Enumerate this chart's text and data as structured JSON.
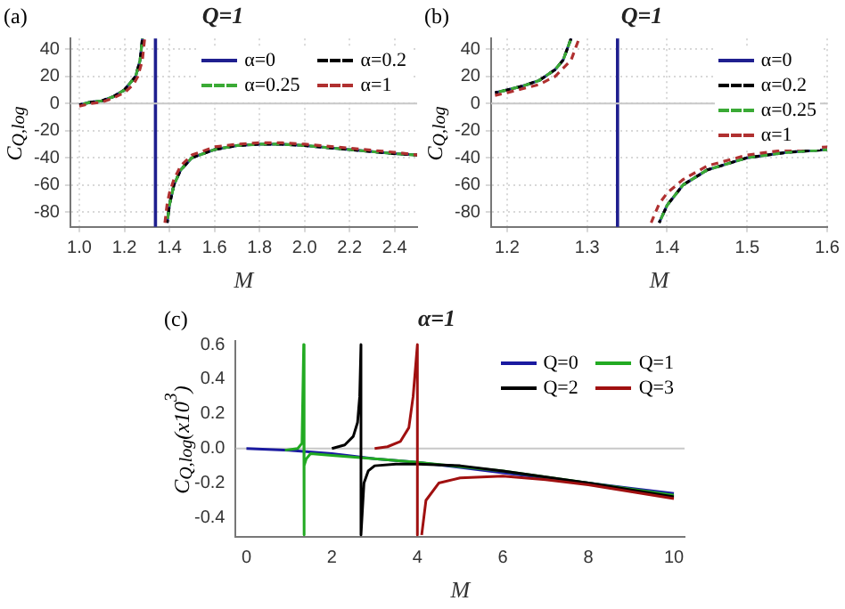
{
  "chart_data": [
    {
      "type": "line",
      "title": "Q=1",
      "xlabel": "M",
      "ylabel": "C$_{Q,log}$",
      "xlim": [
        0.96,
        2.5
      ],
      "ylim": [
        -91,
        48
      ],
      "xticks": [
        {
          "value": 1,
          "label": "1.0"
        },
        1.2,
        1.4,
        1.6,
        1.8,
        {
          "value": 2,
          "label": "2.0"
        },
        2.2,
        2.4
      ],
      "yticks": [
        -80,
        -60,
        -40,
        -20,
        0,
        20,
        40
      ],
      "grid": true,
      "legend": "top right",
      "annotations": [
        "(a)"
      ],
      "ref_lines": [
        {
          "axis": "x",
          "value": 1.338,
          "color": "#1f1f8f"
        },
        {
          "axis": "y",
          "value": 0,
          "color": "#c8c8c8"
        }
      ],
      "series": [
        {
          "name": "α=0",
          "color": "#1f1f8f",
          "line_style": "solid",
          "x": [
            1.0,
            1.05,
            1.1,
            1.15,
            1.2,
            1.25,
            1.27,
            1.28,
            1.33,
            1.39,
            1.4,
            1.42,
            1.45,
            1.5,
            1.6,
            1.7,
            1.8,
            1.9,
            2.0,
            2.2,
            2.4,
            2.5
          ],
          "values": [
            -1,
            1,
            2,
            5,
            10,
            20,
            32,
            48,
            null,
            -88,
            -75,
            -60,
            -49,
            -40,
            -34,
            -31,
            -30,
            -30,
            -31,
            -34,
            -37,
            -38
          ]
        },
        {
          "name": "α=0.2",
          "color": "#000000",
          "line_style": "dashed",
          "x": [
            1.0,
            1.05,
            1.1,
            1.15,
            1.2,
            1.25,
            1.27,
            1.28,
            1.33,
            1.39,
            1.4,
            1.42,
            1.45,
            1.5,
            1.6,
            1.7,
            1.8,
            1.9,
            2.0,
            2.2,
            2.4,
            2.5
          ],
          "values": [
            -1,
            1,
            2,
            5,
            10,
            20,
            32,
            48,
            null,
            -88,
            -75,
            -60,
            -49,
            -40,
            -34,
            -31,
            -30,
            -30,
            -31,
            -34,
            -37,
            -38
          ]
        },
        {
          "name": "α=0.25",
          "color": "#3aaa35",
          "line_style": "dashed",
          "x": [
            1.0,
            1.05,
            1.1,
            1.15,
            1.2,
            1.25,
            1.27,
            1.28,
            1.33,
            1.39,
            1.4,
            1.42,
            1.45,
            1.5,
            1.6,
            1.7,
            1.8,
            1.9,
            2.0,
            2.2,
            2.4,
            2.5
          ],
          "values": [
            -1,
            1,
            2,
            5,
            10,
            20,
            32,
            48,
            null,
            -88,
            -75,
            -60,
            -49,
            -40,
            -34,
            -31,
            -30,
            -30,
            -31,
            -34,
            -37,
            -38
          ]
        },
        {
          "name": "α=1",
          "color": "#b03030",
          "line_style": "dashed",
          "x": [
            1.0,
            1.05,
            1.1,
            1.15,
            1.2,
            1.24,
            1.26,
            1.28,
            1.29,
            1.33,
            1.38,
            1.39,
            1.4,
            1.42,
            1.45,
            1.5,
            1.6,
            1.7,
            1.8,
            1.9,
            2.0,
            2.2,
            2.4,
            2.5
          ],
          "values": [
            -2,
            0,
            1,
            4,
            8,
            14,
            20,
            32,
            48,
            null,
            -88,
            -74,
            -66,
            -56,
            -46,
            -38,
            -32,
            -30,
            -29,
            -29,
            -30,
            -33,
            -36,
            -38
          ]
        }
      ]
    },
    {
      "type": "line",
      "title": "Q=1",
      "xlabel": "M",
      "ylabel": "C$_{Q,log}$",
      "xlim": [
        1.18,
        1.6
      ],
      "ylim": [
        -91,
        48
      ],
      "xticks": [
        1.2,
        1.3,
        1.4,
        1.5,
        1.6
      ],
      "yticks": [
        -80,
        -60,
        -40,
        -20,
        0,
        20,
        40
      ],
      "grid": true,
      "legend": "top right",
      "annotations": [
        "(b)"
      ],
      "ref_lines": [
        {
          "axis": "x",
          "value": 1.338,
          "color": "#1f1f8f"
        },
        {
          "axis": "y",
          "value": 0,
          "color": "#c8c8c8"
        }
      ],
      "series": [
        {
          "name": "α=0",
          "color": "#1f1f8f",
          "line_style": "solid",
          "x": [
            1.185,
            1.2,
            1.22,
            1.24,
            1.26,
            1.27,
            1.28,
            1.33,
            1.39,
            1.4,
            1.42,
            1.45,
            1.5,
            1.55,
            1.6
          ],
          "values": [
            8,
            10,
            13,
            17,
            25,
            32,
            48,
            null,
            -88,
            -75,
            -60,
            -49,
            -40,
            -36,
            -34
          ]
        },
        {
          "name": "α=0.2",
          "color": "#000000",
          "line_style": "dashed",
          "x": [
            1.185,
            1.2,
            1.22,
            1.24,
            1.26,
            1.27,
            1.28,
            1.33,
            1.39,
            1.4,
            1.42,
            1.45,
            1.5,
            1.55,
            1.6
          ],
          "values": [
            8,
            10,
            13,
            17,
            25,
            32,
            48,
            null,
            -88,
            -75,
            -60,
            -49,
            -40,
            -36,
            -34
          ]
        },
        {
          "name": "α=0.25",
          "color": "#3aaa35",
          "line_style": "dashed",
          "x": [
            1.185,
            1.2,
            1.22,
            1.24,
            1.26,
            1.27,
            1.28,
            1.33,
            1.39,
            1.4,
            1.42,
            1.45,
            1.5,
            1.55,
            1.6
          ],
          "values": [
            8,
            10,
            13,
            17,
            25,
            32,
            48,
            null,
            -88,
            -75,
            -60,
            -49,
            -40,
            -36,
            -34
          ]
        },
        {
          "name": "α=1",
          "color": "#b03030",
          "line_style": "dashed",
          "x": [
            1.185,
            1.2,
            1.22,
            1.24,
            1.26,
            1.28,
            1.29,
            1.33,
            1.38,
            1.39,
            1.4,
            1.42,
            1.45,
            1.5,
            1.55,
            1.6
          ],
          "values": [
            6,
            8,
            11,
            14,
            20,
            32,
            48,
            null,
            -88,
            -74,
            -66,
            -56,
            -46,
            -38,
            -34,
            -32
          ]
        }
      ]
    },
    {
      "type": "line",
      "title": "α=1",
      "xlabel": "M",
      "ylabel": "C$_{Q,log}$(x10$^{3}$)",
      "xlim": [
        -0.25,
        10.25
      ],
      "ylim": [
        -0.51,
        0.62
      ],
      "xticks": [
        0,
        2,
        4,
        6,
        8,
        10
      ],
      "yticks": [
        -0.4,
        -0.2,
        {
          "value": 0,
          "label": "0.0"
        },
        0.2,
        0.4,
        0.6
      ],
      "legend": "top right",
      "annotations": [
        "(c)"
      ],
      "ref_lines": [
        {
          "axis": "y",
          "value": 0,
          "color": "#c8c8c8"
        }
      ],
      "series": [
        {
          "name": "Q=0",
          "color": "#1a1aa0",
          "line_style": "solid",
          "x": [
            0,
            1,
            2,
            3,
            4,
            5,
            6,
            7,
            8,
            9,
            10
          ],
          "values": [
            0,
            -0.01,
            -0.03,
            -0.06,
            -0.08,
            -0.11,
            -0.14,
            -0.17,
            -0.2,
            -0.23,
            -0.26
          ]
        },
        {
          "name": "Q=1",
          "color": "#22aa22",
          "line_style": "solid",
          "x": [
            0.9,
            1.2,
            1.3,
            1.34,
            1.34,
            1.36,
            1.4,
            1.5,
            2,
            3,
            4,
            6,
            8,
            10
          ],
          "values": [
            -0.01,
            0,
            0.03,
            0.6,
            -0.5,
            -0.1,
            -0.06,
            -0.03,
            -0.04,
            -0.06,
            -0.08,
            -0.13,
            -0.2,
            -0.27
          ]
        },
        {
          "name": "Q=2",
          "color": "#000000",
          "line_style": "solid",
          "x": [
            2.0,
            2.3,
            2.5,
            2.6,
            2.65,
            2.68,
            2.68,
            2.75,
            2.85,
            3,
            3.5,
            4,
            5,
            6,
            8,
            10
          ],
          "values": [
            0,
            0.02,
            0.07,
            0.15,
            0.3,
            0.6,
            -0.5,
            -0.2,
            -0.13,
            -0.1,
            -0.09,
            -0.09,
            -0.1,
            -0.13,
            -0.2,
            -0.28
          ]
        },
        {
          "name": "Q=3",
          "color": "#a01010",
          "line_style": "solid",
          "x": [
            3.0,
            3.3,
            3.6,
            3.8,
            3.9,
            4.0,
            4.0,
            4.05,
            4.1,
            4.2,
            4.5,
            5,
            6,
            7,
            8,
            9,
            10
          ],
          "values": [
            0,
            0.01,
            0.04,
            0.12,
            0.3,
            0.6,
            -0.5,
            null,
            -0.5,
            -0.3,
            -0.2,
            -0.17,
            -0.16,
            -0.18,
            -0.21,
            -0.25,
            -0.29
          ]
        }
      ]
    }
  ]
}
